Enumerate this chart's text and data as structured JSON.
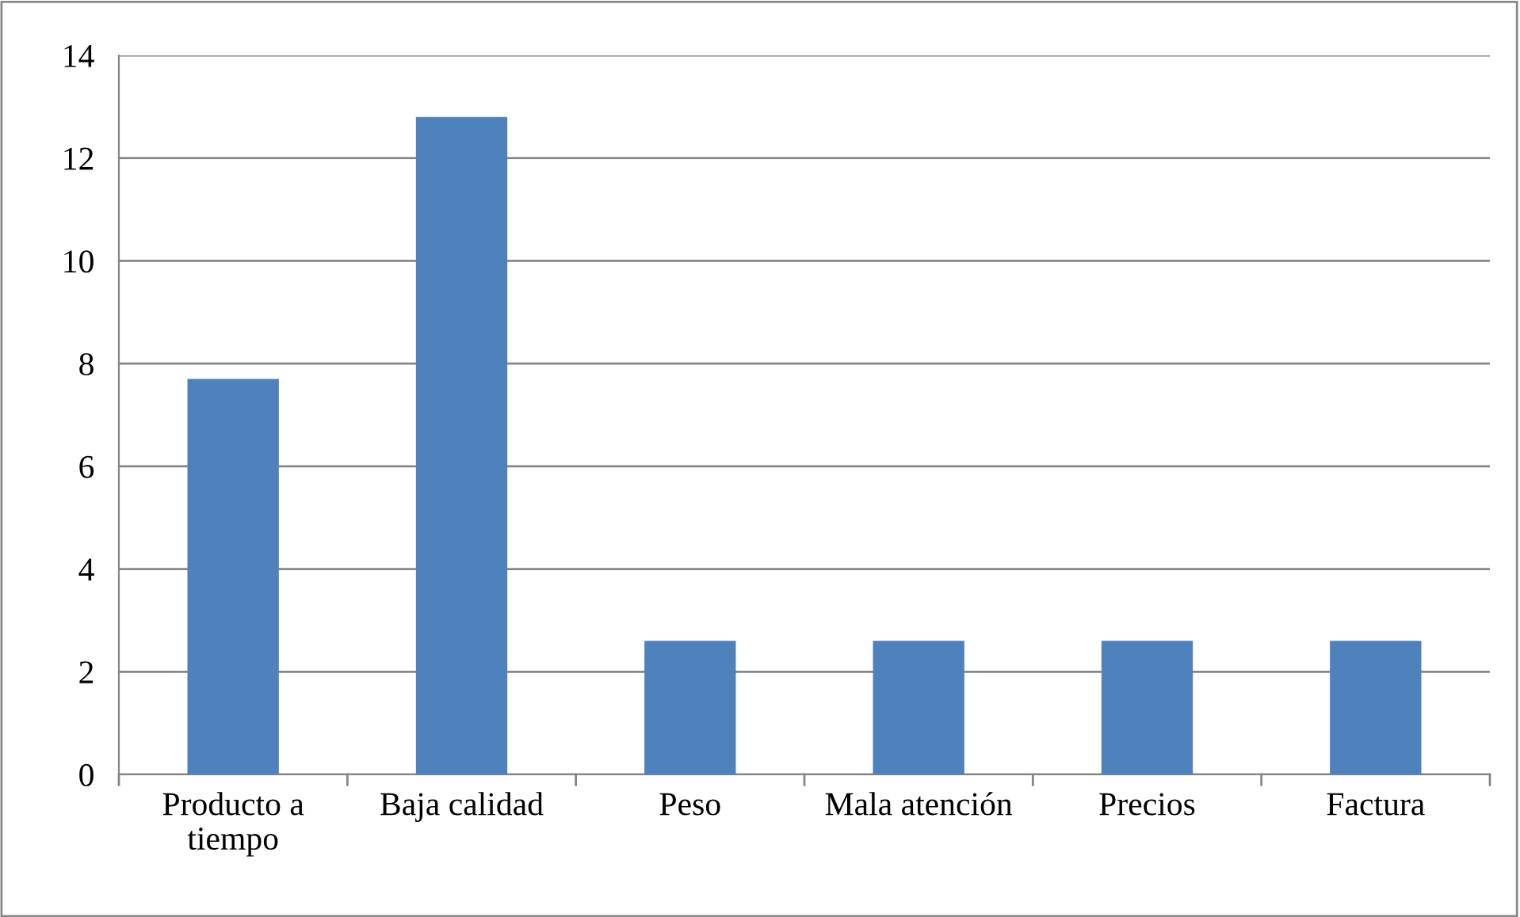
{
  "chart_data": {
    "type": "bar",
    "categories": [
      "Producto a tiempo",
      "Baja calidad",
      "Peso",
      "Mala atención",
      "Precios",
      "Factura"
    ],
    "values": [
      7.7,
      12.8,
      2.6,
      2.6,
      2.6,
      2.6
    ],
    "color": "#4f81bd",
    "ylim": [
      0,
      14
    ],
    "yticks": [
      0,
      2,
      4,
      6,
      8,
      10,
      12,
      14
    ],
    "grid": "y",
    "legend": false
  }
}
